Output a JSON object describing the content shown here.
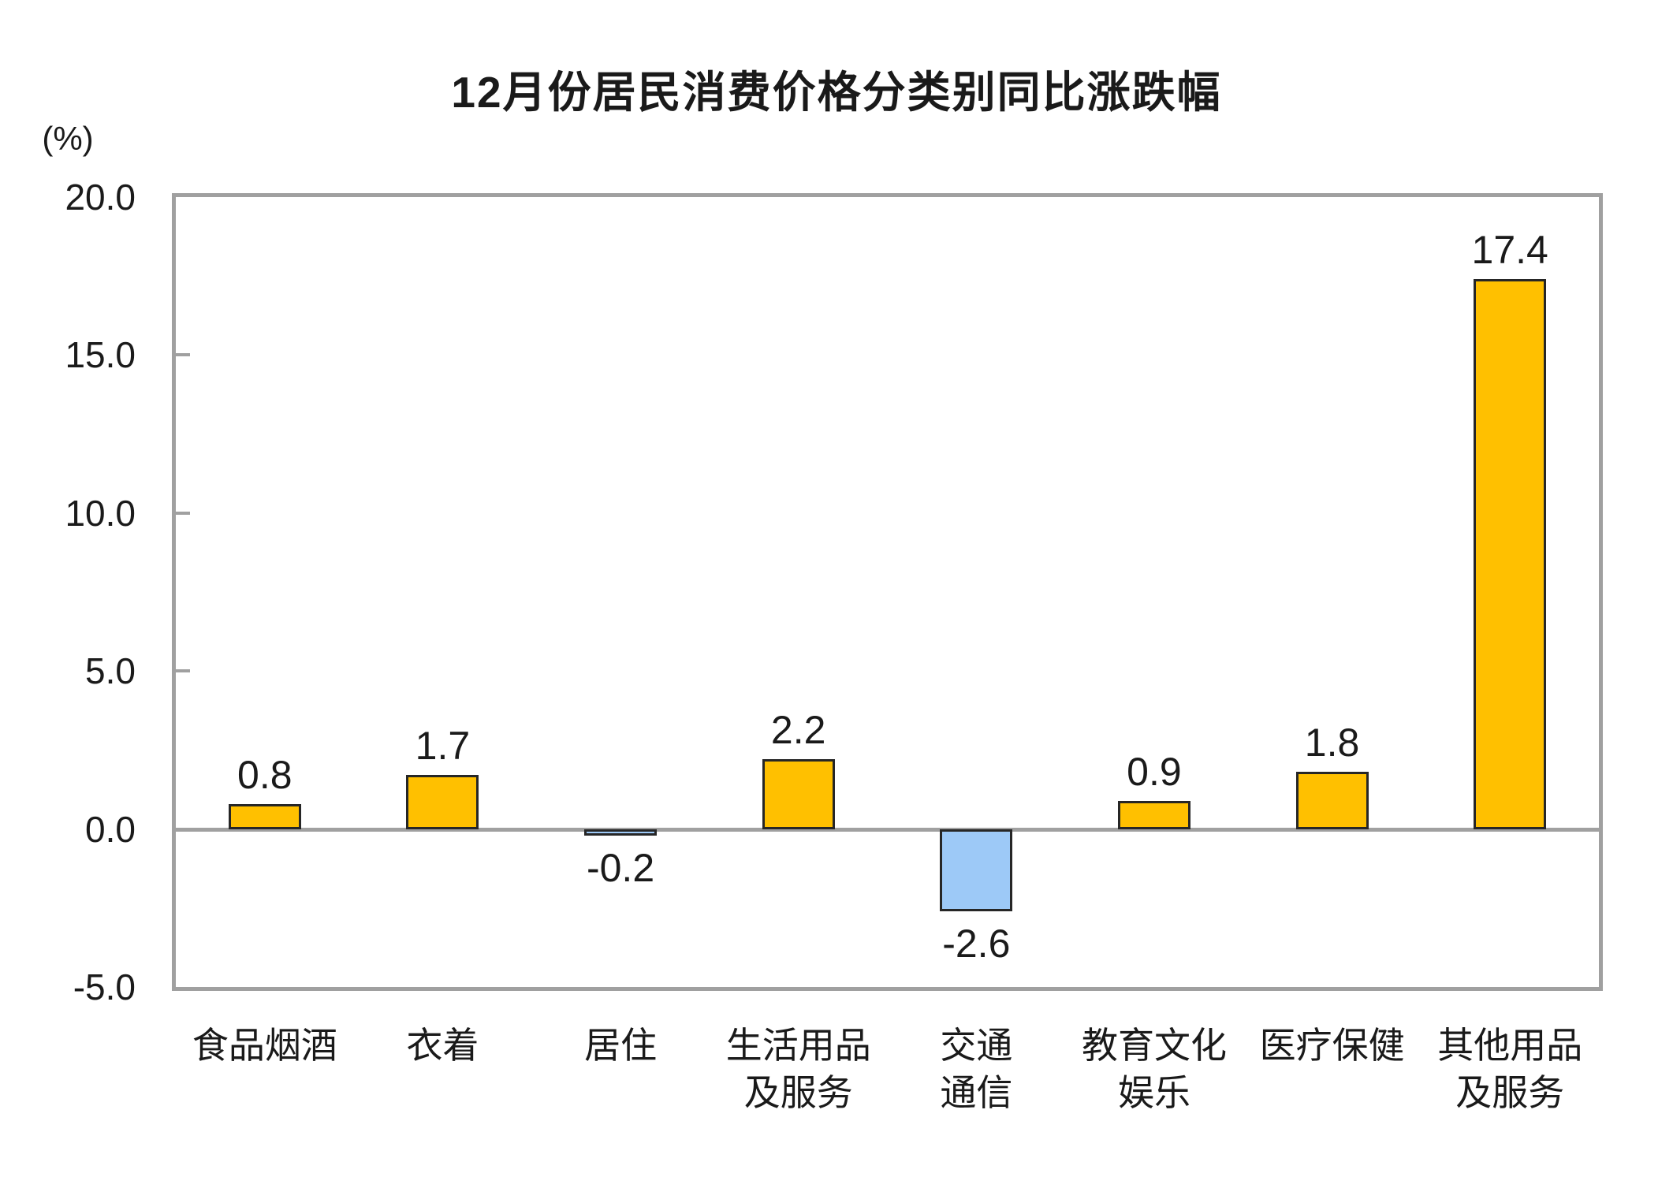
{
  "chart": {
    "title": "12月份居民消费价格分类别同比涨跌幅",
    "unit_label": "(%)"
  },
  "chart_data": {
    "type": "bar",
    "title": "12月份居民消费价格分类别同比涨跌幅",
    "xlabel": "",
    "ylabel": "(%)",
    "categories": [
      "食品烟酒",
      "衣着",
      "居住",
      "生活用品及服务",
      "交通通信",
      "教育文化娱乐",
      "医疗保健",
      "其他用品及服务"
    ],
    "category_label_lines": [
      [
        "食品烟酒"
      ],
      [
        "衣着"
      ],
      [
        "居住"
      ],
      [
        "生活用品",
        "及服务"
      ],
      [
        "交通",
        "通信"
      ],
      [
        "教育文化",
        "娱乐"
      ],
      [
        "医疗保健"
      ],
      [
        "其他用品",
        "及服务"
      ]
    ],
    "values": [
      0.8,
      1.7,
      -0.2,
      2.2,
      -2.6,
      0.9,
      1.8,
      17.4
    ],
    "value_labels": [
      "0.8",
      "1.7",
      "-0.2",
      "2.2",
      "-2.6",
      "0.9",
      "1.8",
      "17.4"
    ],
    "ylim": [
      -5.0,
      20.0
    ],
    "yticks": [
      20,
      15,
      10,
      5,
      0,
      -5
    ],
    "ytick_labels": [
      "20.0",
      "15.0",
      "10.0",
      "5.0",
      "0.0",
      "-5.0"
    ],
    "grid": false,
    "legend": false,
    "colors": {
      "positive_fill": "#FFC000",
      "negative_fill": "#9DC9F7",
      "bar_border": "#262626",
      "axis_line": "#A0A0A0",
      "text": "#1A1A1A"
    }
  }
}
